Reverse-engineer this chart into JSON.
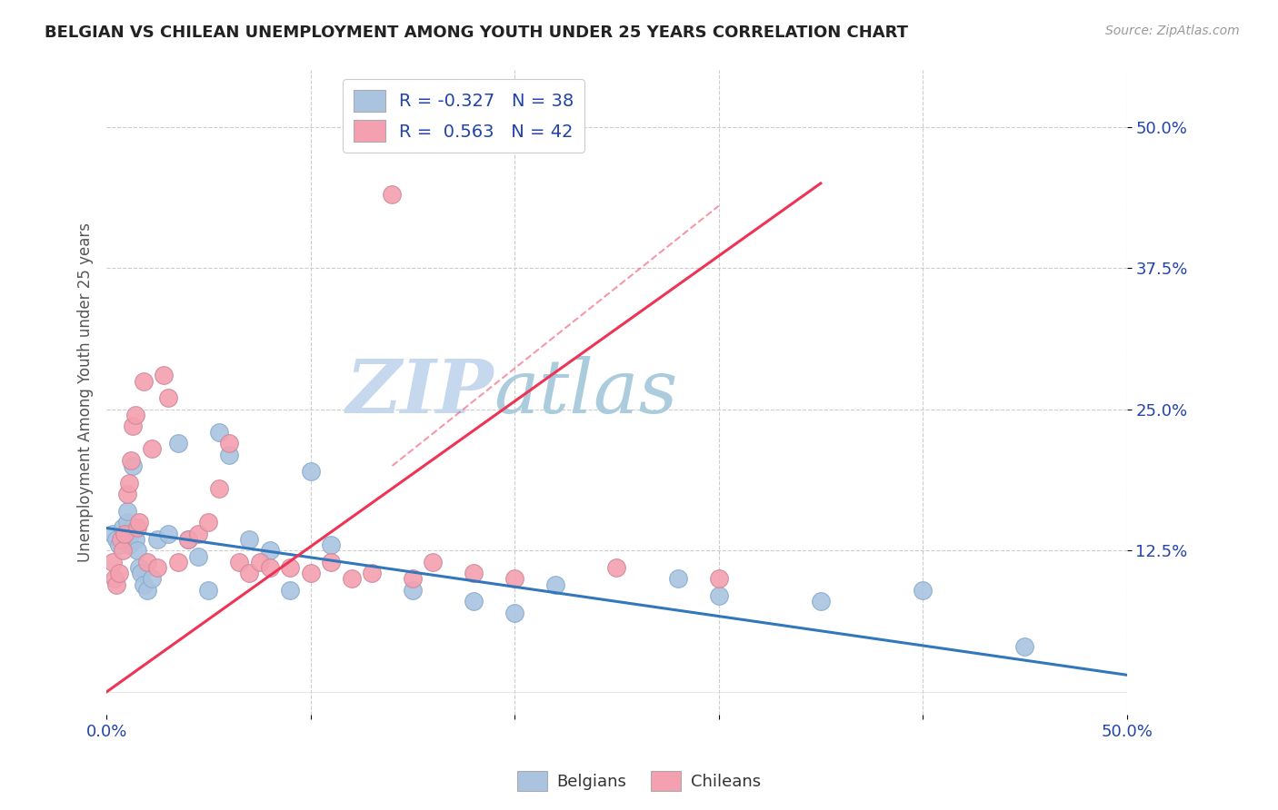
{
  "title": "BELGIAN VS CHILEAN UNEMPLOYMENT AMONG YOUTH UNDER 25 YEARS CORRELATION CHART",
  "source": "Source: ZipAtlas.com",
  "ylabel": "Unemployment Among Youth under 25 years",
  "ytick_labels": [
    "12.5%",
    "25.0%",
    "37.5%",
    "50.0%"
  ],
  "ytick_values": [
    12.5,
    25.0,
    37.5,
    50.0
  ],
  "xlim": [
    0.0,
    50.0
  ],
  "ylim": [
    -2.0,
    55.0
  ],
  "legend_r_belgian": "-0.327",
  "legend_n_belgian": "38",
  "legend_r_chilean": "0.563",
  "legend_n_chilean": "42",
  "color_belgian": "#aac4e0",
  "color_chilean": "#f4a0b0",
  "color_belgian_line": "#3377bb",
  "color_chilean_line": "#ee3355",
  "color_title": "#222222",
  "color_source": "#888888",
  "color_watermark": "#d0e6f5",
  "color_legend_text": "#2244aa",
  "watermark_zip": "ZIP",
  "watermark_atlas": "atlas",
  "belgians_x": [
    0.3,
    0.5,
    0.6,
    0.8,
    1.0,
    1.0,
    1.1,
    1.2,
    1.3,
    1.4,
    1.5,
    1.6,
    1.7,
    1.8,
    2.0,
    2.2,
    2.5,
    3.0,
    3.5,
    4.0,
    4.5,
    5.0,
    5.5,
    6.0,
    7.0,
    8.0,
    9.0,
    10.0,
    11.0,
    15.0,
    18.0,
    20.0,
    22.0,
    28.0,
    30.0,
    35.0,
    40.0,
    45.0
  ],
  "belgians_y": [
    14.0,
    13.5,
    13.0,
    14.5,
    15.0,
    16.0,
    13.0,
    14.0,
    20.0,
    13.5,
    12.5,
    11.0,
    10.5,
    9.5,
    9.0,
    10.0,
    13.5,
    14.0,
    22.0,
    13.5,
    12.0,
    9.0,
    23.0,
    21.0,
    13.5,
    12.5,
    9.0,
    19.5,
    13.0,
    9.0,
    8.0,
    7.0,
    9.5,
    10.0,
    8.5,
    8.0,
    9.0,
    4.0
  ],
  "chileans_x": [
    0.3,
    0.4,
    0.5,
    0.6,
    0.7,
    0.8,
    0.9,
    1.0,
    1.1,
    1.2,
    1.3,
    1.4,
    1.5,
    1.6,
    1.8,
    2.0,
    2.2,
    2.5,
    2.8,
    3.0,
    3.5,
    4.0,
    4.5,
    5.0,
    5.5,
    6.0,
    6.5,
    7.0,
    7.5,
    8.0,
    9.0,
    10.0,
    11.0,
    12.0,
    13.0,
    14.0,
    15.0,
    16.0,
    18.0,
    20.0,
    25.0,
    30.0
  ],
  "chileans_y": [
    11.5,
    10.0,
    9.5,
    10.5,
    13.5,
    12.5,
    14.0,
    17.5,
    18.5,
    20.5,
    23.5,
    24.5,
    14.5,
    15.0,
    27.5,
    11.5,
    21.5,
    11.0,
    28.0,
    26.0,
    11.5,
    13.5,
    14.0,
    15.0,
    18.0,
    22.0,
    11.5,
    10.5,
    11.5,
    11.0,
    11.0,
    10.5,
    11.5,
    10.0,
    10.5,
    44.0,
    10.0,
    11.5,
    10.5,
    10.0,
    11.0,
    10.0
  ],
  "belgian_line_x": [
    0.0,
    50.0
  ],
  "belgian_line_y": [
    14.5,
    1.5
  ],
  "chilean_line_x": [
    0.0,
    35.0
  ],
  "chilean_line_y": [
    0.0,
    45.0
  ]
}
